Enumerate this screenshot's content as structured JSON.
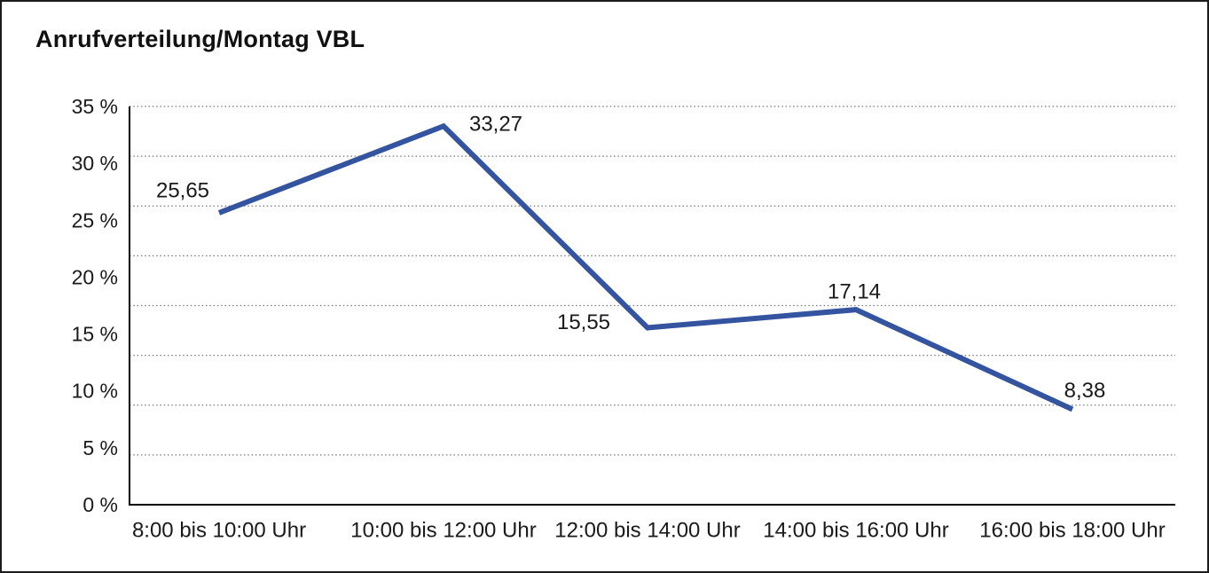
{
  "page": {
    "title": "Anrufverteilung/Montag VBL"
  },
  "chart_data": {
    "type": "line",
    "title": "Anrufverteilung/Montag VBL",
    "categories": [
      "8:00 bis 10:00 Uhr",
      "10:00 bis 12:00 Uhr",
      "12:00 bis 14:00 Uhr",
      "14:00 bis 16:00 Uhr",
      "16:00 bis 18:00 Uhr"
    ],
    "values": [
      25.65,
      33.27,
      15.55,
      17.14,
      8.38
    ],
    "point_labels": [
      "25,65",
      "33,27",
      "15,55",
      "17,14",
      "8,38"
    ],
    "xlabel": "",
    "ylabel": "",
    "y_axis": {
      "min": 0,
      "max": 35,
      "unit": "%",
      "ticks": [
        "0 %",
        "5 %",
        "10 %",
        "15 %",
        "20 %",
        "25 %",
        "30 %",
        "35 %"
      ]
    },
    "grid": "horizontal-dotted",
    "legend_position": "none",
    "colors": {
      "line": "#3454a0",
      "text": "#1a1a1a",
      "axis": "#000000",
      "gridline": "#777777",
      "background": "#ffffff",
      "border": "#1c1c1c"
    }
  }
}
